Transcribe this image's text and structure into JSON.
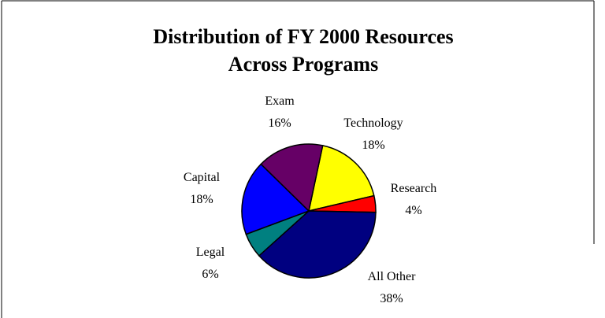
{
  "chart_data": {
    "type": "pie",
    "title": [
      "Distribution of  FY 2000 Resources",
      "Across Programs"
    ],
    "categories": [
      "Technology",
      "Research",
      "All Other",
      "Legal",
      "Capital",
      "Exam"
    ],
    "values": [
      18,
      4,
      38,
      6,
      18,
      16
    ],
    "value_labels": [
      "18%",
      "4%",
      "38%",
      "6%",
      "18%",
      "16%"
    ],
    "colors": [
      "#ffff00",
      "#ff0000",
      "#000080",
      "#008080",
      "#0000ff",
      "#660066"
    ]
  }
}
